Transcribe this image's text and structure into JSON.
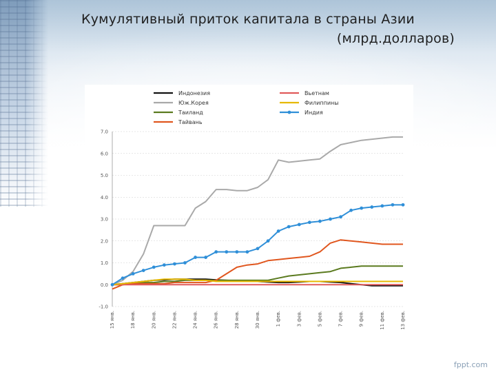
{
  "slide": {
    "title_line1": "Кумулятивный приток капитала в страны Азии",
    "title_line2": "(млрд.долларов)",
    "footer": "fppt.com"
  },
  "chart_data": {
    "type": "line",
    "title": "",
    "xlabel": "",
    "ylabel": "",
    "ylim": [
      -1.0,
      7.0
    ],
    "yticks": [
      "7.0",
      "6.0",
      "5.0",
      "4.0",
      "3.0",
      "2.0",
      "1.0",
      "0.0",
      "-1.0"
    ],
    "grid": true,
    "legend_position": "top",
    "x_labels": [
      "15 янв.",
      "18 янв.",
      "20 янв.",
      "22 янв.",
      "24 янв.",
      "26 янв.",
      "28 янв.",
      "30 янв.",
      "1 фев.",
      "3 фев.",
      "5 фев.",
      "7 фев.",
      "9 фев.",
      "11 фев.",
      "13 фев."
    ],
    "series": [
      {
        "name": "Индонезия",
        "color": "#111111",
        "marker": false,
        "values": [
          0.0,
          0.05,
          0.1,
          0.15,
          0.2,
          0.22,
          0.25,
          0.25,
          0.25,
          0.25,
          0.22,
          0.2,
          0.18,
          0.15,
          0.15,
          0.12,
          0.1,
          0.1,
          0.12,
          0.15,
          0.15,
          0.12,
          0.1,
          0.05,
          0.0,
          -0.05,
          -0.05,
          -0.05,
          -0.05
        ]
      },
      {
        "name": "Юж.Корея",
        "color": "#a9a9a9",
        "marker": false,
        "values": [
          0.0,
          0.2,
          0.6,
          1.4,
          2.7,
          2.7,
          2.7,
          2.7,
          3.5,
          3.8,
          4.35,
          4.35,
          4.3,
          4.3,
          4.45,
          4.8,
          5.7,
          5.6,
          5.65,
          5.7,
          5.75,
          6.1,
          6.4,
          6.5,
          6.6,
          6.65,
          6.7,
          6.75,
          6.75
        ]
      },
      {
        "name": "Таиланд",
        "color": "#5a7a1e",
        "marker": false,
        "values": [
          0.0,
          0.0,
          0.05,
          0.1,
          0.1,
          0.15,
          0.15,
          0.2,
          0.2,
          0.2,
          0.2,
          0.2,
          0.2,
          0.2,
          0.2,
          0.2,
          0.3,
          0.4,
          0.45,
          0.5,
          0.55,
          0.6,
          0.75,
          0.8,
          0.85,
          0.85,
          0.85,
          0.85,
          0.85
        ]
      },
      {
        "name": "Тайвань",
        "color": "#e0561e",
        "marker": false,
        "values": [
          -0.2,
          0.0,
          0.05,
          0.05,
          0.05,
          0.05,
          0.1,
          0.1,
          0.1,
          0.1,
          0.2,
          0.5,
          0.8,
          0.9,
          0.95,
          1.1,
          1.15,
          1.2,
          1.25,
          1.3,
          1.5,
          1.9,
          2.05,
          2.0,
          1.95,
          1.9,
          1.85,
          1.85,
          1.85
        ]
      },
      {
        "name": "Вьетнам",
        "color": "#e05a5a",
        "marker": false,
        "values": [
          0.0,
          0.0,
          0.0,
          0.0,
          0.0,
          0.0,
          0.0,
          0.0,
          0.0,
          0.0,
          0.0,
          0.0,
          0.0,
          0.0,
          0.0,
          0.0,
          0.0,
          0.0,
          0.0,
          0.0,
          0.0,
          0.0,
          0.0,
          0.0,
          0.0,
          0.0,
          0.0,
          0.0,
          0.0
        ]
      },
      {
        "name": "Филиппины",
        "color": "#e6b800",
        "marker": false,
        "values": [
          0.0,
          0.05,
          0.1,
          0.15,
          0.2,
          0.25,
          0.25,
          0.25,
          0.2,
          0.2,
          0.15,
          0.15,
          0.15,
          0.15,
          0.15,
          0.15,
          0.15,
          0.15,
          0.15,
          0.15,
          0.15,
          0.15,
          0.15,
          0.15,
          0.15,
          0.15,
          0.15,
          0.15,
          0.15
        ]
      },
      {
        "name": "Индия",
        "color": "#2f8fd8",
        "marker": true,
        "values": [
          0.0,
          0.3,
          0.5,
          0.65,
          0.8,
          0.9,
          0.95,
          1.0,
          1.25,
          1.25,
          1.5,
          1.5,
          1.5,
          1.5,
          1.65,
          2.0,
          2.45,
          2.65,
          2.75,
          2.85,
          2.9,
          3.0,
          3.1,
          3.4,
          3.5,
          3.55,
          3.6,
          3.65,
          3.65
        ]
      }
    ]
  }
}
